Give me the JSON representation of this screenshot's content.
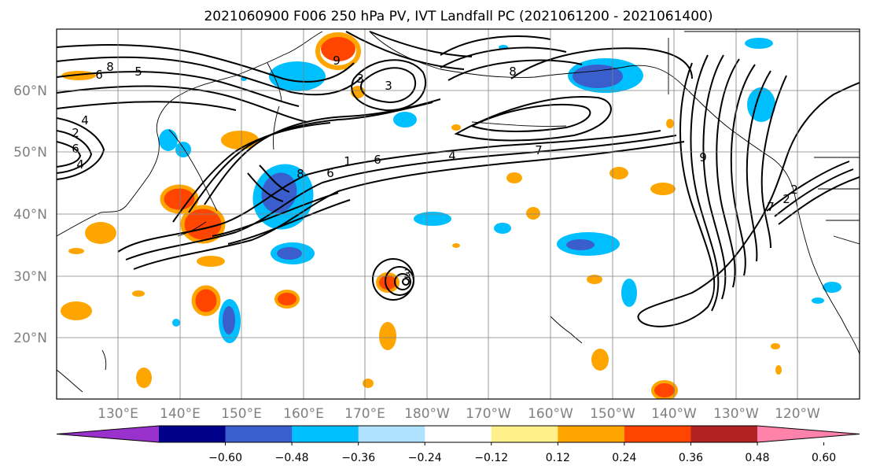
{
  "title": "2021060900 F006 250 hPa PV, IVT Landfall PC (2021061200 - 2021061400)",
  "map": {
    "lat_labels": [
      "60°N",
      "50°N",
      "40°N",
      "30°N",
      "20°N"
    ],
    "lon_labels": [
      "130°E",
      "140°E",
      "150°E",
      "160°E",
      "170°E",
      "180°W",
      "170°W",
      "160°W",
      "150°W",
      "140°W",
      "130°W",
      "120°W"
    ],
    "contour_labels": [
      "8",
      "6",
      "4",
      "2",
      "6",
      "4",
      "5",
      "9",
      "3",
      "6",
      "4",
      "7",
      "3",
      "8",
      "6",
      "9",
      "2",
      "3",
      "8",
      "7",
      "1",
      "2"
    ]
  },
  "colorbar": {
    "tick_labels": [
      "−0.60",
      "−0.48",
      "−0.36",
      "−0.24",
      "−0.12",
      "0.12",
      "0.24",
      "0.36",
      "0.48",
      "0.60"
    ],
    "colors": [
      "#9932cc",
      "#00008b",
      "#3a5fcd",
      "#00bfff",
      "#b0e2ff",
      "#ffffff",
      "#fff08c",
      "#ffa500",
      "#ff4500",
      "#b22222",
      "#ff82ab"
    ]
  }
}
